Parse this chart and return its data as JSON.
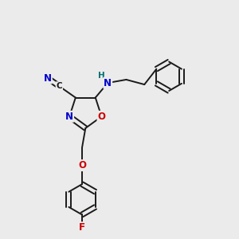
{
  "background_color": "#ebebeb",
  "bond_color": "#1a1a1a",
  "bond_width": 1.4,
  "atom_colors": {
    "N": "#0000cc",
    "O": "#cc0000",
    "F": "#cc0000",
    "H": "#007070",
    "C": "#1a1a1a"
  },
  "font_size": 8.5
}
